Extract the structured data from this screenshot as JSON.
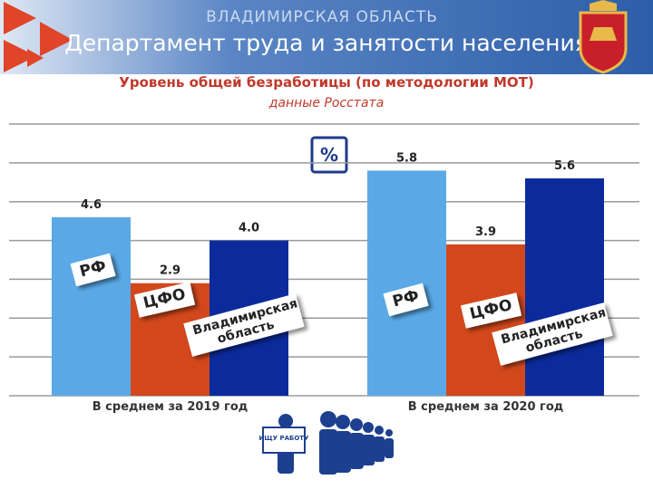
{
  "header": {
    "region": "ВЛАДИМИРСКАЯ ОБЛАСТЬ",
    "department": "Департамент труда и занятости населения"
  },
  "chart_data": {
    "type": "bar",
    "title": "Уровень общей безработицы (по методологии МОТ)",
    "subtitle": "данные Росстата",
    "unit_badge": "%",
    "categories": [
      "В среднем за 2019 год",
      "В среднем за 2020 год"
    ],
    "series": [
      {
        "name": "РФ",
        "color": "#5aa9e6",
        "values": [
          4.6,
          5.8
        ],
        "value_labels": [
          "4.6",
          "5.8"
        ]
      },
      {
        "name": "ЦФО",
        "color": "#d2481c",
        "values": [
          2.9,
          3.9
        ],
        "value_labels": [
          "2.9",
          "3.9"
        ]
      },
      {
        "name": "Владимирская область",
        "color": "#0b2b9c",
        "values": [
          4.0,
          5.6
        ],
        "value_labels": [
          "4.0",
          "5.6"
        ]
      }
    ],
    "ylim": [
      0,
      7
    ],
    "yticks": [
      0,
      1,
      2,
      3,
      4,
      5,
      6,
      7
    ],
    "grid": true
  },
  "sign_text": "ИЩУ РАБОТУ"
}
